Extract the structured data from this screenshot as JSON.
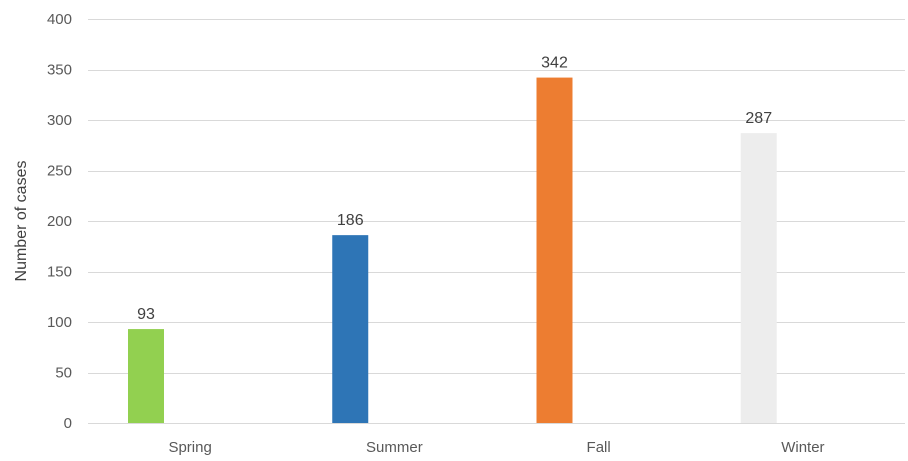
{
  "chart_data": {
    "type": "bar",
    "title": "",
    "xlabel": "",
    "ylabel": "Number of cases",
    "categories": [
      "Spring",
      "Summer",
      "Fall",
      "Winter"
    ],
    "values": [
      93,
      186,
      342,
      287
    ],
    "data_labels": [
      "93",
      "186",
      "342",
      "287"
    ],
    "colors": [
      "#92d050",
      "#2e75b6",
      "#ed7d31",
      "#ededed"
    ],
    "ylim": [
      0,
      400
    ],
    "yticks": [
      0,
      50,
      100,
      150,
      200,
      250,
      300,
      350,
      400
    ],
    "ytick_labels": [
      "0",
      "50",
      "100",
      "150",
      "200",
      "250",
      "300",
      "350",
      "400"
    ],
    "grid": true,
    "legend": "none"
  }
}
